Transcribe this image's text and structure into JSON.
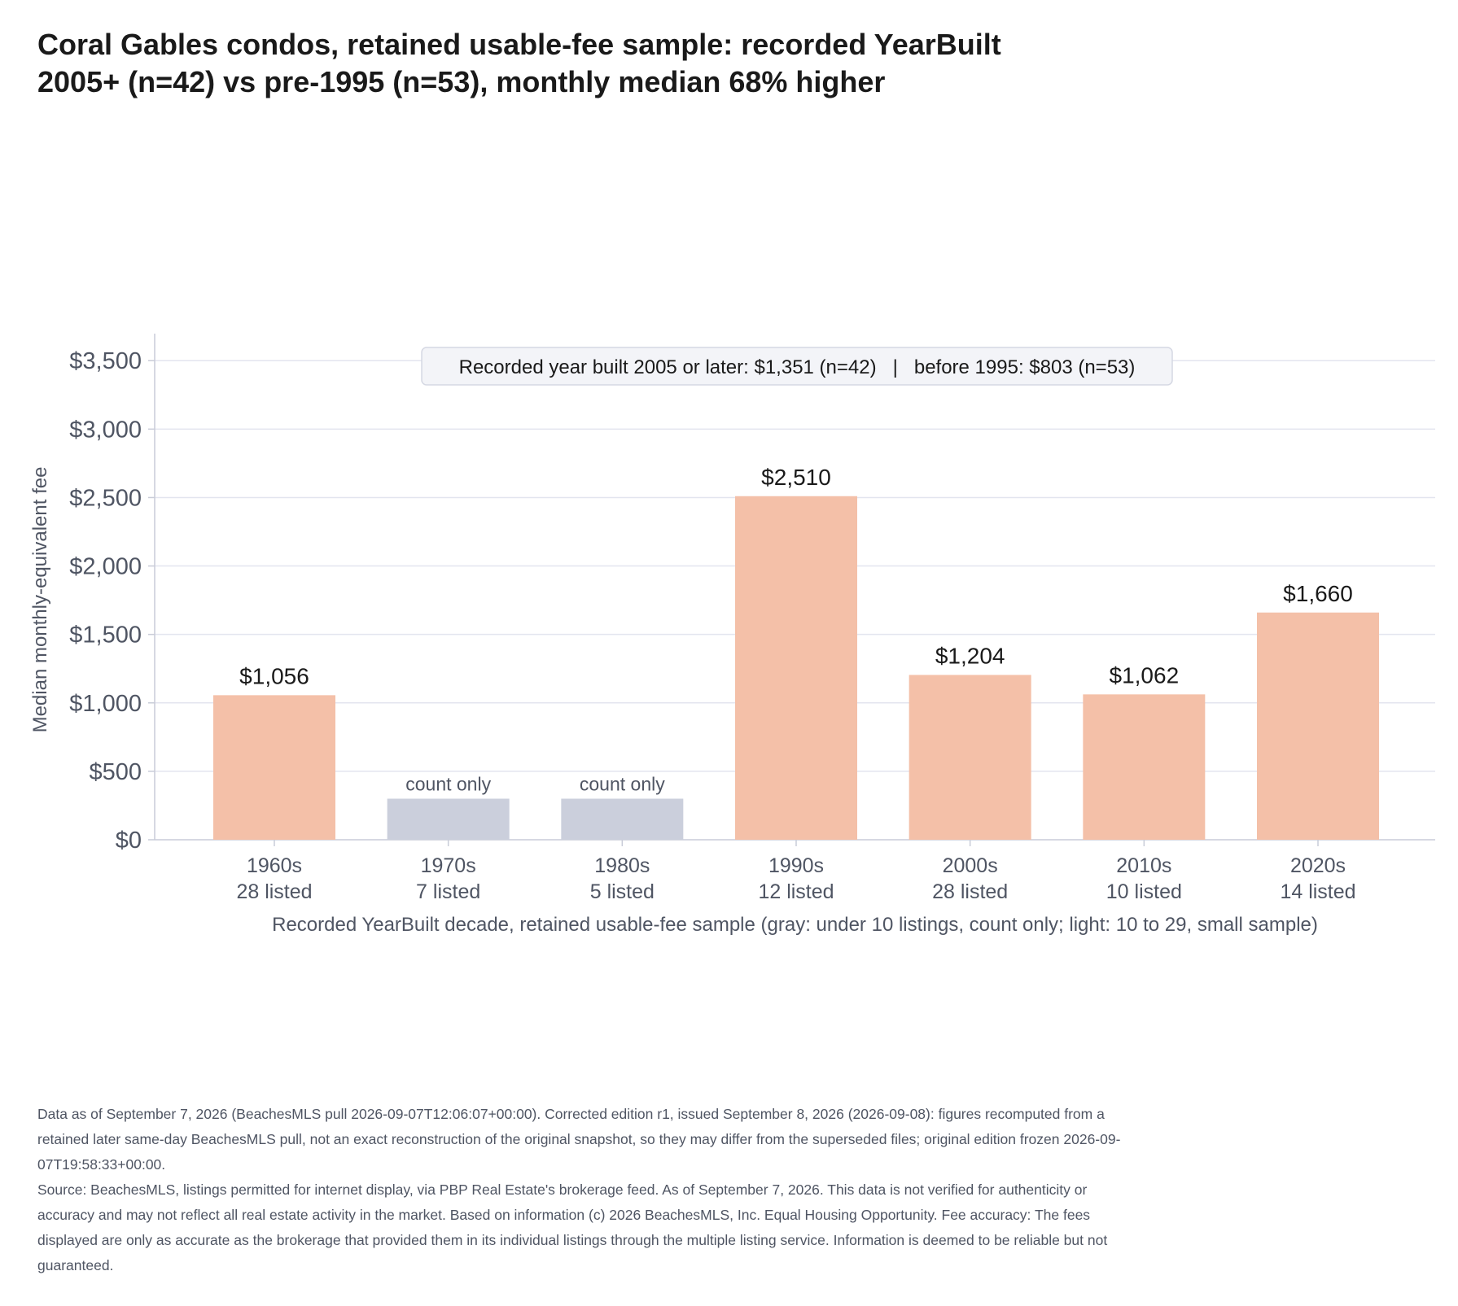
{
  "title": "Coral Gables condos, retained usable-fee sample: recorded YearBuilt 2005+ (n=42) vs pre-1995 (n=53), monthly median 68% higher",
  "colors": {
    "bar_small_sample": "#f4c0a8",
    "bar_count_only": "#cbcfdc",
    "grid": "#e3e5ef",
    "axis": "#c9ccd8",
    "muted_text": "#4f5563"
  },
  "chart_data": {
    "type": "bar",
    "title": "Coral Gables condos, retained usable-fee sample: recorded YearBuilt 2005+ (n=42) vs pre-1995 (n=53), monthly median 68% higher",
    "xlabel": "Recorded YearBuilt decade, retained usable-fee sample (gray: under 10 listings, count only; light: 10 to 29, small sample)",
    "ylabel": "Median monthly-equivalent fee",
    "ylim": [
      0,
      3650
    ],
    "yticks": [
      0,
      500,
      1000,
      1500,
      2000,
      2500,
      3000,
      3500
    ],
    "ytick_labels": [
      "$0",
      "$500",
      "$1,000",
      "$1,500",
      "$2,000",
      "$2,500",
      "$3,000",
      "$3,500"
    ],
    "grid": true,
    "categories": [
      "1960s",
      "1970s",
      "1980s",
      "1990s",
      "2000s",
      "2010s",
      "2020s"
    ],
    "counts": [
      "28 listed",
      "7 listed",
      "5 listed",
      "12 listed",
      "28 listed",
      "10 listed",
      "14 listed"
    ],
    "values": [
      1056,
      null,
      null,
      2510,
      1204,
      1062,
      1660
    ],
    "count_only_placeholder_value": 300,
    "value_labels": [
      "$1,056",
      "count only",
      "count only",
      "$2,510",
      "$1,204",
      "$1,062",
      "$1,660"
    ],
    "bar_styles": [
      "small_sample",
      "count_only",
      "count_only",
      "small_sample",
      "small_sample",
      "small_sample",
      "small_sample"
    ],
    "annotation": "Recorded year built 2005 or later: $1,351 (n=42)   |   before 1995: $803 (n=53)",
    "annotation_values": {
      "built_2005_or_later": {
        "median": 1351,
        "n": 42
      },
      "before_1995": {
        "median": 803,
        "n": 53
      }
    }
  },
  "footnote": [
    "Data as of September 7, 2026 (BeachesMLS pull 2026-09-07T12:06:07+00:00). Corrected edition r1, issued September 8, 2026 (2026-09-08): figures recomputed from a retained later same-day BeachesMLS pull, not an exact reconstruction of the original snapshot, so they may differ from the superseded files; original edition frozen 2026-09-07T19:58:33+00:00.",
    "Source: BeachesMLS, listings permitted for internet display, via PBP Real Estate's brokerage feed. As of September 7, 2026. This data is not verified for authenticity or accuracy and may not reflect all real estate activity in the market. Based on information (c) 2026 BeachesMLS, Inc. Equal Housing Opportunity. Fee accuracy: The fees displayed are only as accurate as the brokerage that provided them in its individual listings through the multiple listing service. Information is deemed to be reliable but not guaranteed."
  ]
}
